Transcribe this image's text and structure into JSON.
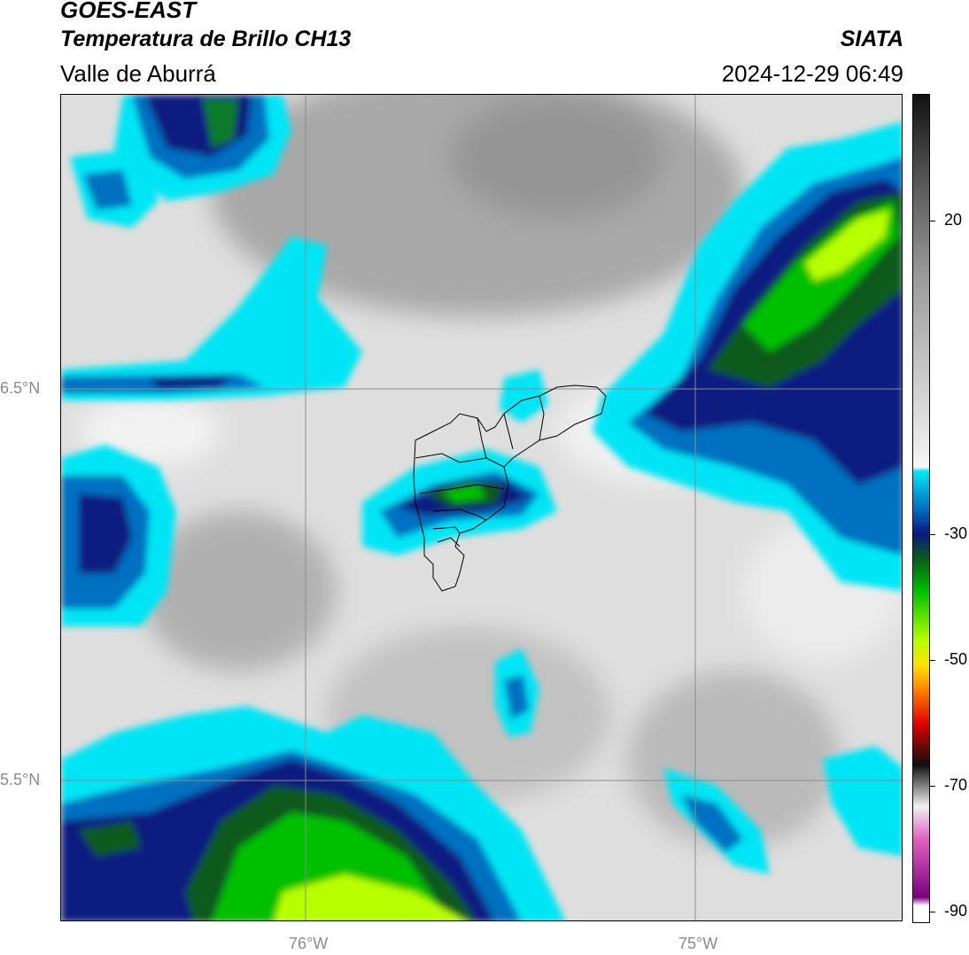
{
  "header": {
    "satellite": "GOES-EAST",
    "product": "Temperatura de Brillo CH13",
    "region": "Valle de Aburrá",
    "organization": "SIATA",
    "timestamp": "2024-12-29 06:49"
  },
  "axes": {
    "lat_labels": [
      "6.5°N",
      "5.5°N"
    ],
    "lon_labels": [
      "76°W",
      "75°W"
    ]
  },
  "colorbar": {
    "ticks": [
      "20",
      "-30",
      "-50",
      "-70",
      "-90"
    ],
    "colors": {
      "warm_top": "#111111",
      "gray_mid": "#9a9a9a",
      "white": "#f5f5f5",
      "cyan": "#00e5f5",
      "blue": "#0070c0",
      "navy": "#0a1a80",
      "green_dark": "#0a5a1a",
      "green": "#00c000",
      "lime": "#b8ff00",
      "yellow": "#ffe000",
      "orange": "#ff8000",
      "red": "#e00000",
      "black": "#101010",
      "pink": "#e060c0",
      "purple": "#7a0080"
    }
  }
}
